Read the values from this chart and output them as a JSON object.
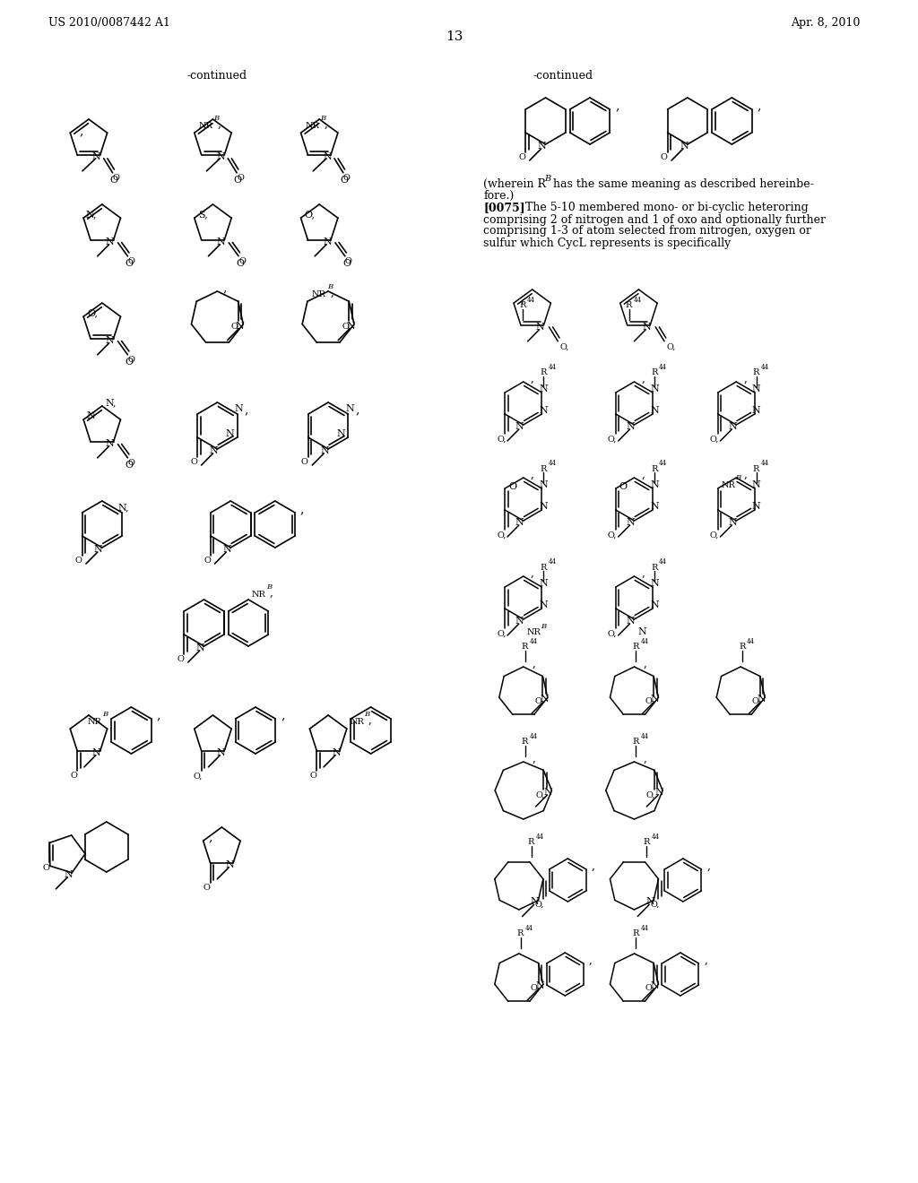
{
  "header_left": "US 2010/0087442 A1",
  "header_right": "Apr. 8, 2010",
  "page_number": "13",
  "background_color": "#ffffff",
  "continued_left": "-continued",
  "continued_right": "-continued",
  "paragraph_1": "(wherein R",
  "paragraph_1b": " has the same meaning as described hereinbefore.)",
  "paragraph_2_bold": "[0075]",
  "paragraph_2": "   The 5-10 membered mono- or bi-cyclic heteroring comprising 2 of nitrogen and 1 of oxo and optionally further comprising 1-3 of atom selected from nitrogen, oxygen or sulfur which CycL represents is specifically"
}
